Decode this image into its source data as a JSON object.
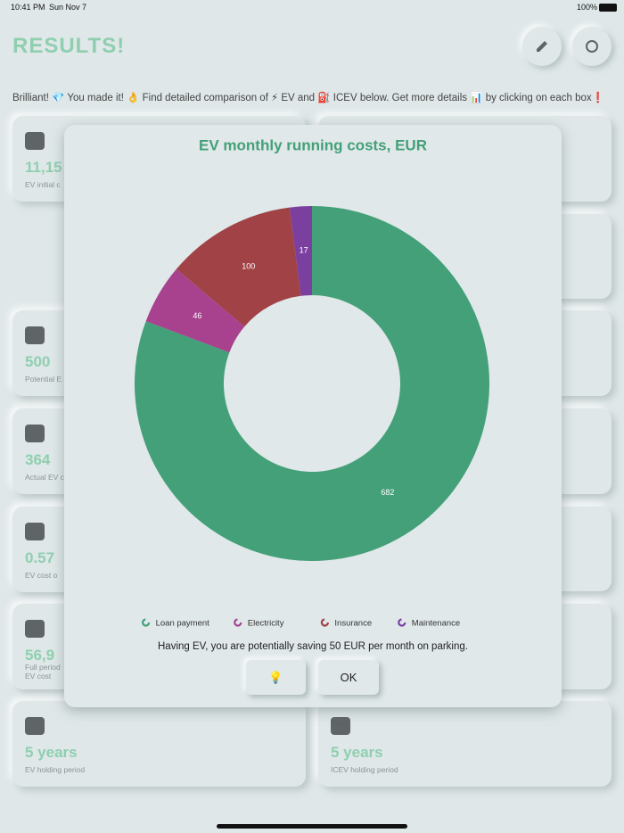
{
  "status_bar": {
    "time": "10:41 PM",
    "date": "Sun Nov 7",
    "battery": "100%"
  },
  "header": {
    "title": "RESULTS!"
  },
  "intro": "Brilliant! 💎 You made it! 👌 Find detailed comparison of ⚡ EV and ⛽ ICEV below. Get more details 📊 by clicking on each box❗",
  "cards": [
    {
      "value": "11,15",
      "label": "EV initial c"
    },
    {
      "value": "500",
      "label": "Potential E"
    },
    {
      "value": "364",
      "label": "Actual EV c"
    },
    {
      "value": "0.57",
      "label": "EV cost o"
    },
    {
      "value": "56,9",
      "label": "Full period",
      "label2": "EV cost"
    },
    {
      "value": "5 years",
      "label": "EV holding period"
    },
    {
      "value": "5 years",
      "label": "ICEV holding period"
    }
  ],
  "chart_data": {
    "type": "pie",
    "title": "EV monthly running costs, EUR",
    "categories": [
      "Loan payment",
      "Electricity",
      "Insurance",
      "Maintenance"
    ],
    "values": [
      682,
      46,
      100,
      17
    ],
    "colors": [
      "#43a078",
      "#a8428f",
      "#a04246",
      "#7b3fa0"
    ],
    "donut": true
  },
  "note": "Having EV, you are potentially saving 50 EUR per month on parking.",
  "buttons": [
    "💡",
    "OK"
  ]
}
